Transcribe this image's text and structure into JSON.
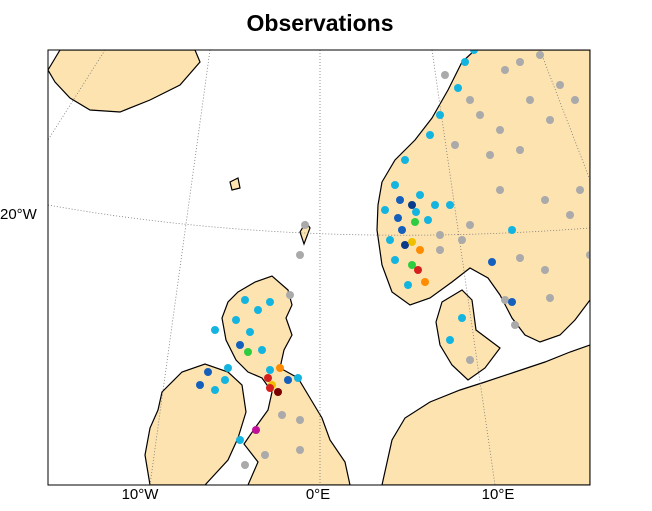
{
  "title": "Observations",
  "axis_labels": {
    "left": [
      "20°W"
    ],
    "bottom": [
      "10°W",
      "0°E",
      "10°E"
    ]
  }
}
